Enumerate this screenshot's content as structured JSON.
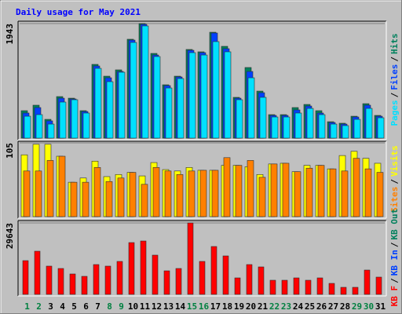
{
  "chart_data": [
    {
      "type": "bar",
      "title": "Daily usage for May 2021",
      "ylim": [
        0,
        1943
      ],
      "yticks": [
        1943
      ],
      "legend_separator": "/",
      "series": [
        {
          "name": "Pages",
          "color": "#00e0ff",
          "values": [
            372,
            399,
            239,
            612,
            652,
            426,
            1184,
            958,
            1118,
            1623,
            1903,
            1384,
            851,
            1011,
            1450,
            1410,
            1637,
            1464,
            652,
            1024,
            692,
            359,
            359,
            426,
            505,
            399,
            239,
            213,
            319,
            505,
            346
          ]
        },
        {
          "name": "Files",
          "color": "#0040ff",
          "values": [
            426,
            519,
            293,
            678,
            665,
            452,
            1224,
            1024,
            1131,
            1663,
            1930,
            1410,
            891,
            1038,
            1490,
            1450,
            1783,
            1517,
            678,
            1131,
            771,
            386,
            386,
            479,
            545,
            426,
            266,
            239,
            359,
            559,
            372
          ]
        },
        {
          "name": "Hits",
          "color": "#00805c",
          "values": [
            466,
            559,
            319,
            705,
            678,
            466,
            1251,
            1051,
            1158,
            1677,
            1943,
            1437,
            905,
            1051,
            1504,
            1464,
            1796,
            1557,
            692,
            1198,
            798,
            399,
            399,
            519,
            572,
            466,
            279,
            253,
            372,
            585,
            386
          ]
        }
      ]
    },
    {
      "type": "bar",
      "ylim": [
        0,
        105
      ],
      "yticks": [
        105
      ],
      "legend_separator": "/",
      "series": [
        {
          "name": "Sites",
          "color": "#ff8000",
          "values": [
            65,
            65,
            80,
            86,
            49,
            49,
            70,
            50,
            55,
            63,
            46,
            70,
            65,
            60,
            65,
            66,
            66,
            84,
            73,
            80,
            56,
            75,
            76,
            64,
            69,
            73,
            68,
            65,
            83,
            68,
            63
          ]
        },
        {
          "name": "Visits",
          "color": "#ffff00",
          "values": [
            88,
            103,
            103,
            86,
            49,
            55,
            79,
            57,
            60,
            63,
            58,
            77,
            67,
            65,
            70,
            66,
            66,
            73,
            73,
            71,
            60,
            75,
            76,
            64,
            73,
            73,
            68,
            87,
            93,
            83,
            76
          ]
        }
      ]
    },
    {
      "type": "bar",
      "ylim": [
        0,
        29643
      ],
      "yticks": [
        29643
      ],
      "legend_separator": "/",
      "categories": [
        "1",
        "2",
        "3",
        "4",
        "5",
        "6",
        "7",
        "8",
        "9",
        "10",
        "11",
        "12",
        "13",
        "14",
        "15",
        "16",
        "17",
        "18",
        "19",
        "20",
        "21",
        "22",
        "23",
        "24",
        "25",
        "26",
        "27",
        "28",
        "29",
        "30",
        "31"
      ],
      "category_colors": [
        "#008040",
        "#008040",
        "#000000",
        "#000000",
        "#000000",
        "#000000",
        "#000000",
        "#008040",
        "#008040",
        "#000000",
        "#000000",
        "#000000",
        "#000000",
        "#000000",
        "#008040",
        "#008040",
        "#000000",
        "#000000",
        "#000000",
        "#000000",
        "#000000",
        "#008040",
        "#008040",
        "#000000",
        "#000000",
        "#000000",
        "#000000",
        "#000000",
        "#008040",
        "#008040",
        "#000000"
      ],
      "series": [
        {
          "name": "KB F",
          "color": "#ff0000",
          "values": [
            14005,
            17914,
            11726,
            10748,
            8469,
            7491,
            12377,
            11726,
            13680,
            21497,
            22149,
            16286,
            9771,
            10748,
            29643,
            13680,
            19869,
            15960,
            6840,
            12377,
            11400,
            5863,
            5863,
            6840,
            5863,
            6840,
            4560,
            2931,
            2931,
            10097,
            7166
          ]
        },
        {
          "name": "KB In",
          "color": "#0040ff"
        },
        {
          "name": "KB Out",
          "color": "#00805c"
        }
      ]
    }
  ]
}
